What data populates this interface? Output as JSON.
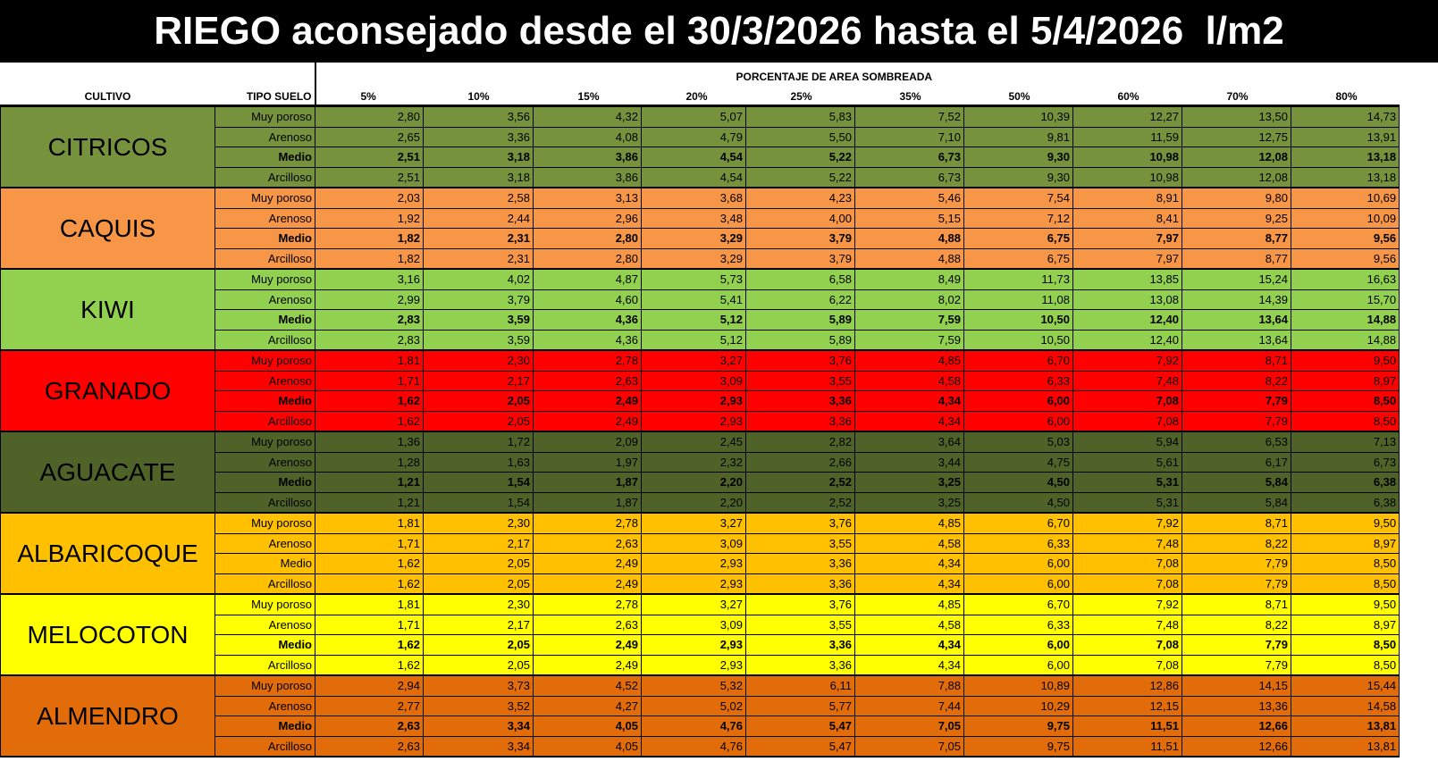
{
  "title": "RIEGO aconsejado desde el 30/3/2026 hasta el 5/4/2026  l/m2",
  "header": {
    "cultivo": "CULTIVO",
    "tipo_suelo": "TIPO SUELO",
    "group_label": "PORCENTAJE DE AREA SOMBREADA",
    "percentages": [
      "5%",
      "10%",
      "15%",
      "20%",
      "25%",
      "35%",
      "50%",
      "60%",
      "70%",
      "80%"
    ]
  },
  "crops": [
    {
      "name": "CITRICOS",
      "color": "#76923c",
      "rows": [
        {
          "soil": "Muy poroso",
          "bold": false,
          "values": [
            "2,80",
            "3,56",
            "4,32",
            "5,07",
            "5,83",
            "7,52",
            "10,39",
            "12,27",
            "13,50",
            "14,73"
          ]
        },
        {
          "soil": "Arenoso",
          "bold": false,
          "values": [
            "2,65",
            "3,36",
            "4,08",
            "4,79",
            "5,50",
            "7,10",
            "9,81",
            "11,59",
            "12,75",
            "13,91"
          ]
        },
        {
          "soil": "Medio",
          "bold": true,
          "values": [
            "2,51",
            "3,18",
            "3,86",
            "4,54",
            "5,22",
            "6,73",
            "9,30",
            "10,98",
            "12,08",
            "13,18"
          ]
        },
        {
          "soil": "Arcilloso",
          "bold": false,
          "values": [
            "2,51",
            "3,18",
            "3,86",
            "4,54",
            "5,22",
            "6,73",
            "9,30",
            "10,98",
            "12,08",
            "13,18"
          ]
        }
      ]
    },
    {
      "name": "CAQUIS",
      "color": "#f79646",
      "rows": [
        {
          "soil": "Muy poroso",
          "bold": false,
          "values": [
            "2,03",
            "2,58",
            "3,13",
            "3,68",
            "4,23",
            "5,46",
            "7,54",
            "8,91",
            "9,80",
            "10,69"
          ]
        },
        {
          "soil": "Arenoso",
          "bold": false,
          "values": [
            "1,92",
            "2,44",
            "2,96",
            "3,48",
            "4,00",
            "5,15",
            "7,12",
            "8,41",
            "9,25",
            "10,09"
          ]
        },
        {
          "soil": "Medio",
          "bold": true,
          "values": [
            "1,82",
            "2,31",
            "2,80",
            "3,29",
            "3,79",
            "4,88",
            "6,75",
            "7,97",
            "8,77",
            "9,56"
          ]
        },
        {
          "soil": "Arcilloso",
          "bold": false,
          "values": [
            "1,82",
            "2,31",
            "2,80",
            "3,29",
            "3,79",
            "4,88",
            "6,75",
            "7,97",
            "8,77",
            "9,56"
          ]
        }
      ]
    },
    {
      "name": "KIWI",
      "color": "#92d050",
      "rows": [
        {
          "soil": "Muy poroso",
          "bold": false,
          "values": [
            "3,16",
            "4,02",
            "4,87",
            "5,73",
            "6,58",
            "8,49",
            "11,73",
            "13,85",
            "15,24",
            "16,63"
          ]
        },
        {
          "soil": "Arenoso",
          "bold": false,
          "values": [
            "2,99",
            "3,79",
            "4,60",
            "5,41",
            "6,22",
            "8,02",
            "11,08",
            "13,08",
            "14,39",
            "15,70"
          ]
        },
        {
          "soil": "Medio",
          "bold": true,
          "values": [
            "2,83",
            "3,59",
            "4,36",
            "5,12",
            "5,89",
            "7,59",
            "10,50",
            "12,40",
            "13,64",
            "14,88"
          ]
        },
        {
          "soil": "Arcilloso",
          "bold": false,
          "values": [
            "2,83",
            "3,59",
            "4,36",
            "5,12",
            "5,89",
            "7,59",
            "10,50",
            "12,40",
            "13,64",
            "14,88"
          ]
        }
      ]
    },
    {
      "name": "GRANADO",
      "color": "#ff0000",
      "rows": [
        {
          "soil": "Muy poroso",
          "bold": false,
          "values": [
            "1,81",
            "2,30",
            "2,78",
            "3,27",
            "3,76",
            "4,85",
            "6,70",
            "7,92",
            "8,71",
            "9,50"
          ]
        },
        {
          "soil": "Arenoso",
          "bold": false,
          "values": [
            "1,71",
            "2,17",
            "2,63",
            "3,09",
            "3,55",
            "4,58",
            "6,33",
            "7,48",
            "8,22",
            "8,97"
          ]
        },
        {
          "soil": "Medio",
          "bold": true,
          "values": [
            "1,62",
            "2,05",
            "2,49",
            "2,93",
            "3,36",
            "4,34",
            "6,00",
            "7,08",
            "7,79",
            "8,50"
          ]
        },
        {
          "soil": "Arcilloso",
          "bold": false,
          "values": [
            "1,62",
            "2,05",
            "2,49",
            "2,93",
            "3,36",
            "4,34",
            "6,00",
            "7,08",
            "7,79",
            "8,50"
          ]
        }
      ]
    },
    {
      "name": "AGUACATE",
      "color": "#4f6228",
      "rows": [
        {
          "soil": "Muy poroso",
          "bold": false,
          "values": [
            "1,36",
            "1,72",
            "2,09",
            "2,45",
            "2,82",
            "3,64",
            "5,03",
            "5,94",
            "6,53",
            "7,13"
          ]
        },
        {
          "soil": "Arenoso",
          "bold": false,
          "values": [
            "1,28",
            "1,63",
            "1,97",
            "2,32",
            "2,66",
            "3,44",
            "4,75",
            "5,61",
            "6,17",
            "6,73"
          ]
        },
        {
          "soil": "Medio",
          "bold": true,
          "values": [
            "1,21",
            "1,54",
            "1,87",
            "2,20",
            "2,52",
            "3,25",
            "4,50",
            "5,31",
            "5,84",
            "6,38"
          ]
        },
        {
          "soil": "Arcilloso",
          "bold": false,
          "values": [
            "1,21",
            "1,54",
            "1,87",
            "2,20",
            "2,52",
            "3,25",
            "4,50",
            "5,31",
            "5,84",
            "6,38"
          ]
        }
      ]
    },
    {
      "name": "ALBARICOQUE",
      "color": "#ffc000",
      "rows": [
        {
          "soil": "Muy poroso",
          "bold": false,
          "values": [
            "1,81",
            "2,30",
            "2,78",
            "3,27",
            "3,76",
            "4,85",
            "6,70",
            "7,92",
            "8,71",
            "9,50"
          ]
        },
        {
          "soil": "Arenoso",
          "bold": false,
          "values": [
            "1,71",
            "2,17",
            "2,63",
            "3,09",
            "3,55",
            "4,58",
            "6,33",
            "7,48",
            "8,22",
            "8,97"
          ]
        },
        {
          "soil": "Medio",
          "bold": false,
          "values": [
            "1,62",
            "2,05",
            "2,49",
            "2,93",
            "3,36",
            "4,34",
            "6,00",
            "7,08",
            "7,79",
            "8,50"
          ]
        },
        {
          "soil": "Arcilloso",
          "bold": false,
          "values": [
            "1,62",
            "2,05",
            "2,49",
            "2,93",
            "3,36",
            "4,34",
            "6,00",
            "7,08",
            "7,79",
            "8,50"
          ]
        }
      ]
    },
    {
      "name": "MELOCOTON",
      "color": "#ffff00",
      "rows": [
        {
          "soil": "Muy poroso",
          "bold": false,
          "values": [
            "1,81",
            "2,30",
            "2,78",
            "3,27",
            "3,76",
            "4,85",
            "6,70",
            "7,92",
            "8,71",
            "9,50"
          ]
        },
        {
          "soil": "Arenoso",
          "bold": false,
          "values": [
            "1,71",
            "2,17",
            "2,63",
            "3,09",
            "3,55",
            "4,58",
            "6,33",
            "7,48",
            "8,22",
            "8,97"
          ]
        },
        {
          "soil": "Medio",
          "bold": true,
          "values": [
            "1,62",
            "2,05",
            "2,49",
            "2,93",
            "3,36",
            "4,34",
            "6,00",
            "7,08",
            "7,79",
            "8,50"
          ]
        },
        {
          "soil": "Arcilloso",
          "bold": false,
          "values": [
            "1,62",
            "2,05",
            "2,49",
            "2,93",
            "3,36",
            "4,34",
            "6,00",
            "7,08",
            "7,79",
            "8,50"
          ]
        }
      ]
    },
    {
      "name": "ALMENDRO",
      "color": "#e26b0a",
      "rows": [
        {
          "soil": "Muy poroso",
          "bold": false,
          "values": [
            "2,94",
            "3,73",
            "4,52",
            "5,32",
            "6,11",
            "7,88",
            "10,89",
            "12,86",
            "14,15",
            "15,44"
          ]
        },
        {
          "soil": "Arenoso",
          "bold": false,
          "values": [
            "2,77",
            "3,52",
            "4,27",
            "5,02",
            "5,77",
            "7,44",
            "10,29",
            "12,15",
            "13,36",
            "14,58"
          ]
        },
        {
          "soil": "Medio",
          "bold": true,
          "values": [
            "2,63",
            "3,34",
            "4,05",
            "4,76",
            "5,47",
            "7,05",
            "9,75",
            "11,51",
            "12,66",
            "13,81"
          ]
        },
        {
          "soil": "Arcilloso",
          "bold": false,
          "values": [
            "2,63",
            "3,34",
            "4,05",
            "4,76",
            "5,47",
            "7,05",
            "9,75",
            "11,51",
            "12,66",
            "13,81"
          ]
        }
      ]
    }
  ]
}
